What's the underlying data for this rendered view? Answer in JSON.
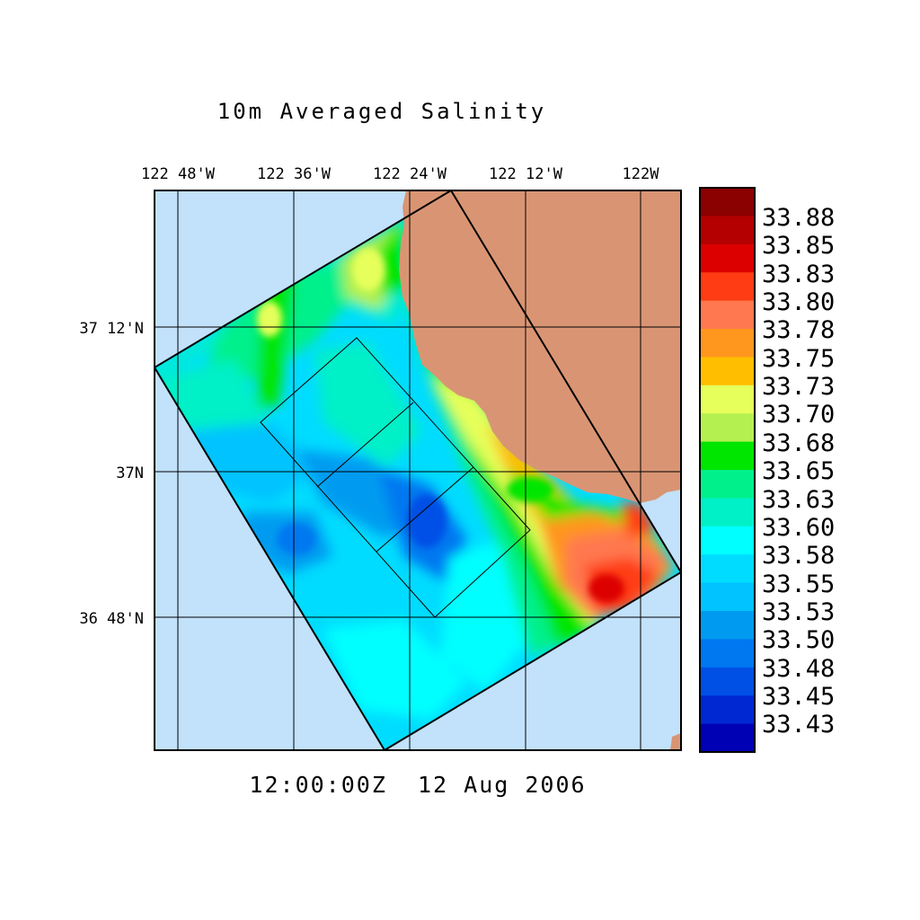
{
  "title": "10m Averaged Salinity",
  "time_label": "12:00:00Z  12 Aug 2006",
  "lon_labels": [
    "122 48'W",
    "122 36'W",
    "122 24'W",
    "122 12'W",
    "122W"
  ],
  "lat_labels": [
    "37 12'N",
    "37N",
    "36 48'N"
  ],
  "colorbar": {
    "labels": [
      "33.88",
      "33.85",
      "33.83",
      "33.80",
      "33.78",
      "33.75",
      "33.73",
      "33.70",
      "33.68",
      "33.65",
      "33.63",
      "33.60",
      "33.58",
      "33.55",
      "33.53",
      "33.50",
      "33.48",
      "33.45",
      "33.43"
    ],
    "colors": [
      "#8b0000",
      "#b40000",
      "#dc0000",
      "#ff3c14",
      "#ff7850",
      "#ff961e",
      "#ffbe00",
      "#e6ff5a",
      "#b4f050",
      "#00e600",
      "#00f08c",
      "#00f0c8",
      "#00ffff",
      "#00dcff",
      "#00c3ff",
      "#009bf0",
      "#0078f0",
      "#0050e6",
      "#0028d2",
      "#0000b4"
    ]
  },
  "colors": {
    "ocean": "#c2e1fa",
    "land": "#d99573"
  }
}
